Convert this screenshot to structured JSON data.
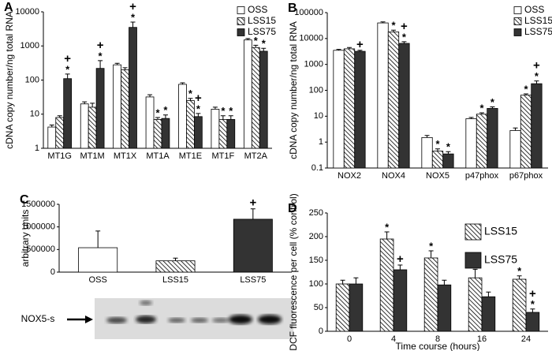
{
  "chart_data": [
    {
      "type": "bar",
      "panel_label": "A",
      "y_label": "cDNA copy number/ng total RNA",
      "log_scale": true,
      "ylim": [
        1,
        10000
      ],
      "yticks": [
        1,
        10,
        100,
        1000,
        10000
      ],
      "legend": "upper right",
      "categories": [
        "MT1G",
        "MT1M",
        "MT1X",
        "MT1A",
        "MT1E",
        "MT1F",
        "MT2A"
      ],
      "series": [
        {
          "name": "OSS",
          "color": "#ffffff",
          "values": [
            4.2,
            20,
            280,
            32,
            75,
            14,
            1500
          ],
          "errors": [
            0.6,
            3,
            30,
            5,
            8,
            2,
            150
          ],
          "annotations": [
            null,
            null,
            null,
            null,
            null,
            null,
            null
          ]
        },
        {
          "name": "LSS15",
          "color": "#000000",
          "pattern": "hatch",
          "values": [
            8,
            16,
            200,
            7,
            25,
            7,
            900
          ],
          "errors": [
            1,
            5,
            30,
            1,
            4,
            2,
            150
          ],
          "annotations": [
            null,
            null,
            null,
            [
              "*"
            ],
            [
              "*"
            ],
            [
              "*"
            ],
            [
              "*"
            ]
          ]
        },
        {
          "name": "LSS75",
          "color": "#333333",
          "values": [
            110,
            220,
            3500,
            7.5,
            8.5,
            7,
            700
          ],
          "errors": [
            40,
            150,
            1500,
            2,
            2,
            2,
            150
          ],
          "annotations": [
            [
              "+",
              "*"
            ],
            [
              "+",
              "*"
            ],
            [
              "+",
              "*"
            ],
            [
              "*"
            ],
            [
              "+",
              "*"
            ],
            [
              "*"
            ],
            [
              "*"
            ]
          ]
        }
      ]
    },
    {
      "type": "bar",
      "panel_label": "B",
      "y_label": "cDNA copy number/ng total RNA",
      "log_scale": true,
      "ylim": [
        0.1,
        100000
      ],
      "yticks": [
        0.1,
        1,
        10,
        100,
        1000,
        10000,
        100000
      ],
      "legend": "upper right",
      "categories": [
        "NOX2",
        "NOX4",
        "NOX5",
        "p47phox",
        "p67phox"
      ],
      "series": [
        {
          "name": "OSS",
          "color": "#ffffff",
          "values": [
            3500,
            40000,
            1.5,
            8,
            2.8
          ],
          "errors": [
            300,
            4000,
            0.3,
            1,
            0.7
          ],
          "annotations": [
            null,
            null,
            null,
            null,
            null
          ]
        },
        {
          "name": "LSS15",
          "color": "#000000",
          "pattern": "hatch",
          "values": [
            4000,
            18000,
            0.45,
            12,
            65
          ],
          "errors": [
            500,
            3000,
            0.1,
            1.5,
            8
          ],
          "annotations": [
            null,
            [
              "*"
            ],
            [
              "*"
            ],
            [
              "*"
            ],
            [
              "*"
            ]
          ]
        },
        {
          "name": "LSS75",
          "color": "#333333",
          "values": [
            3200,
            6500,
            0.35,
            20,
            180
          ],
          "errors": [
            300,
            1000,
            0.08,
            3,
            50
          ],
          "annotations": [
            [
              "+"
            ],
            [
              "+",
              "*"
            ],
            [
              "*"
            ],
            [
              "*"
            ],
            [
              "+",
              "*"
            ]
          ]
        }
      ]
    },
    {
      "type": "bar",
      "panel_label": "C",
      "y_label": "arbitrary units",
      "blot_label": "NOX5-s",
      "ylim": [
        0,
        1500000
      ],
      "yticks": [
        0,
        500000,
        1000000,
        1500000
      ],
      "categories": [
        "OSS",
        "LSS15",
        "LSS75"
      ],
      "series": [
        {
          "colors": [
            "#ffffff",
            "#000000",
            "#333333"
          ],
          "patterns": [
            null,
            "hatch",
            null
          ],
          "values": [
            540000,
            250000,
            1170000
          ],
          "errors": [
            370000,
            60000,
            230000
          ],
          "annotations": [
            null,
            null,
            [
              "+"
            ]
          ]
        }
      ]
    },
    {
      "type": "bar",
      "panel_label": "D",
      "y_label": "DCF fluorescence per cell (% control)",
      "x_label": "Time course (hours)",
      "ylim": [
        0,
        250
      ],
      "yticks": [
        0,
        50,
        100,
        150,
        200,
        250
      ],
      "legend": "right",
      "categories": [
        "0",
        "4",
        "8",
        "16",
        "24"
      ],
      "series": [
        {
          "name": "LSS15",
          "color": "#000000",
          "pattern": "hatch",
          "values": [
            100,
            195,
            155,
            113,
            110
          ],
          "errors": [
            8,
            15,
            15,
            18,
            7
          ],
          "annotations": [
            null,
            [
              "*"
            ],
            [
              "*"
            ],
            null,
            [
              "*"
            ]
          ]
        },
        {
          "name": "LSS75",
          "color": "#333333",
          "values": [
            100,
            130,
            98,
            73,
            40
          ],
          "errors": [
            13,
            10,
            10,
            10,
            7
          ],
          "annotations": [
            null,
            [
              "+"
            ],
            null,
            null,
            [
              "+",
              "*"
            ]
          ]
        }
      ]
    }
  ]
}
